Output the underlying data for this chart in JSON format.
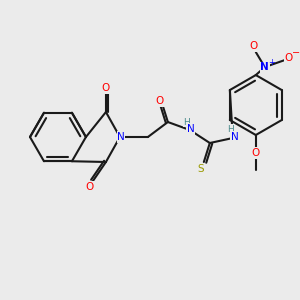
{
  "bg_color": "#ebebeb",
  "bond_color": "#1a1a1a",
  "bond_lw": 1.5,
  "atom_colors": {
    "N": "#0000ff",
    "O": "#ff0000",
    "S": "#999900",
    "H": "#4a8a8a",
    "C": "#1a1a1a",
    "plus": "#0000ff",
    "minus": "#ff0000"
  },
  "font_size": 7.5,
  "font_size_small": 6.5
}
